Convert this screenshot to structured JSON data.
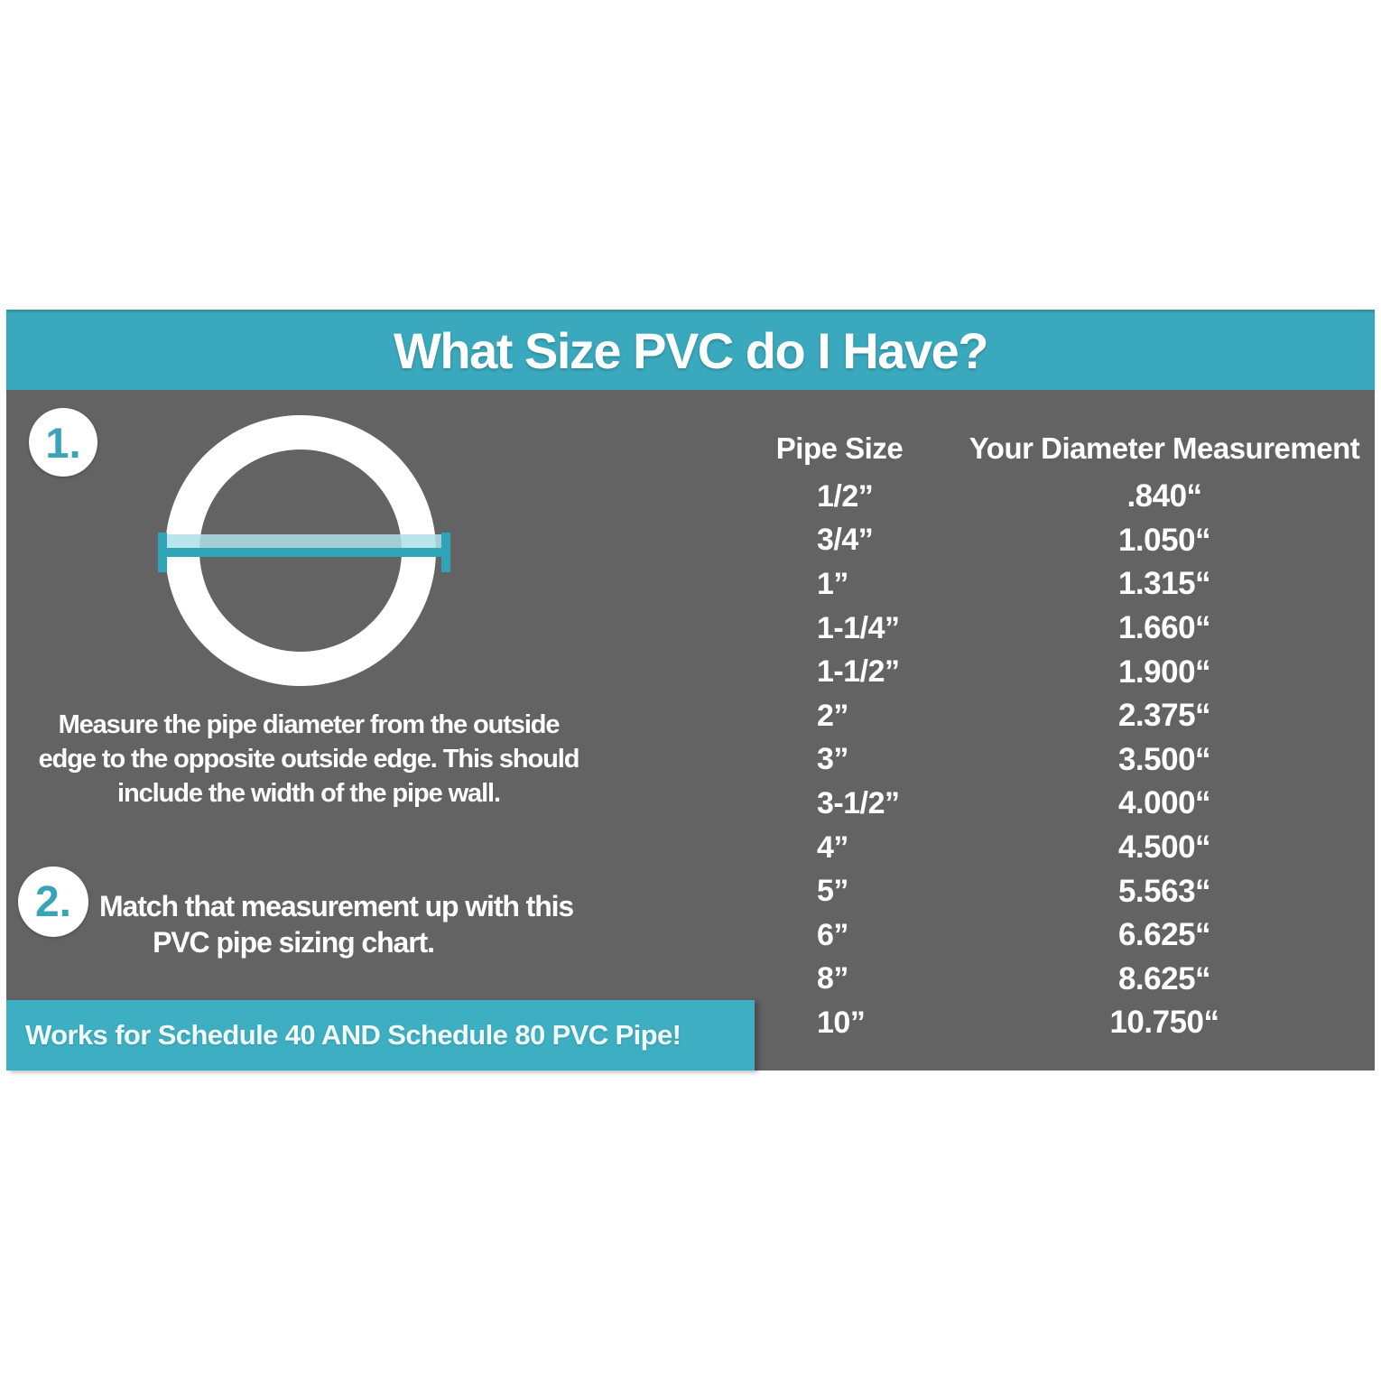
{
  "colors": {
    "teal": "#3BA9BD",
    "teal_light": "#AFE0EA",
    "panel_gray": "#636363",
    "text_white": "#FFFFFF"
  },
  "header": {
    "title": "What Size PVC do I Have?"
  },
  "steps": [
    {
      "number": "1.",
      "lines": [
        "Measure the pipe diameter from the outside",
        "edge to the opposite outside edge. This should",
        "include the width of the pipe wall."
      ]
    },
    {
      "number": "2.",
      "lines": [
        "Match that measurement up with this",
        "PVC pipe sizing chart."
      ]
    }
  ],
  "diagram": {
    "description": "pipe cross-section ring with outside-diameter measurement line"
  },
  "table": {
    "columns": [
      "Pipe Size",
      "Your Diameter Measurement"
    ],
    "rows": [
      [
        "1/2”",
        ".840“"
      ],
      [
        "3/4”",
        "1.050“"
      ],
      [
        "1”",
        "1.315“"
      ],
      [
        "1-1/4”",
        "1.660“"
      ],
      [
        "1-1/2”",
        "1.900“"
      ],
      [
        "2”",
        "2.375“"
      ],
      [
        "3”",
        "3.500“"
      ],
      [
        "3-1/2”",
        "4.000“"
      ],
      [
        "4”",
        "4.500“"
      ],
      [
        "5”",
        "5.563“"
      ],
      [
        "6”",
        "6.625“"
      ],
      [
        "8”",
        "8.625“"
      ],
      [
        "10”",
        "10.750“"
      ]
    ]
  },
  "banner": {
    "text": "Works for Schedule 40 AND Schedule 80 PVC Pipe!"
  }
}
